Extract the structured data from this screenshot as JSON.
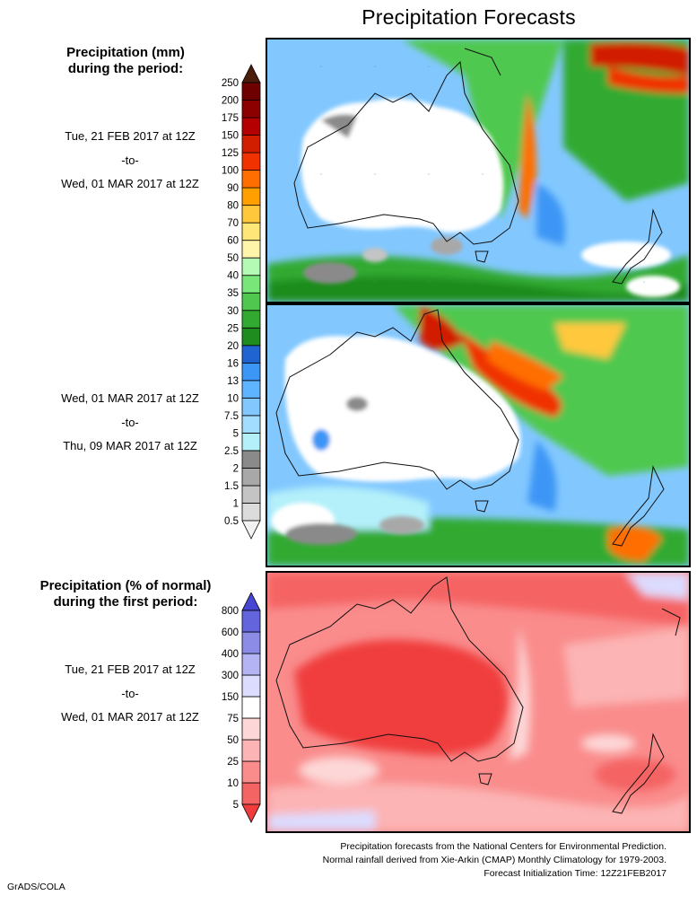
{
  "title": "Precipitation Forecasts",
  "section1": {
    "title_line1": "Precipitation (mm)",
    "title_line2": "during the period:",
    "periods": [
      {
        "start": "Tue, 21 FEB 2017 at 12Z",
        "sep": "-to-",
        "end": "Wed, 01 MAR 2017 at 12Z"
      },
      {
        "start": "Wed, 01 MAR 2017 at 12Z",
        "sep": "-to-",
        "end": "Thu, 09 MAR 2017 at 12Z"
      }
    ],
    "scale": {
      "labels": [
        "0.5",
        "1",
        "1.5",
        "2",
        "2.5",
        "5",
        "7.5",
        "10",
        "13",
        "16",
        "20",
        "25",
        "30",
        "35",
        "40",
        "50",
        "60",
        "70",
        "80",
        "90",
        "100",
        "125",
        "150",
        "175",
        "200",
        "250"
      ],
      "colors": [
        "#f2f2f2",
        "#dcdcdc",
        "#c4c4c4",
        "#a8a8a8",
        "#8a8a8a",
        "#b4f0fa",
        "#a2dcff",
        "#82c8ff",
        "#5fb4ff",
        "#3c96f5",
        "#2064d2",
        "#1e8c1e",
        "#32aa32",
        "#50c850",
        "#78e678",
        "#b4fab4",
        "#fff5aa",
        "#ffe678",
        "#ffc83c",
        "#ffa000",
        "#ff6e00",
        "#f03200",
        "#d21e00",
        "#b40000",
        "#8c0000",
        "#6e0000"
      ],
      "top_arrow_color": "#4a1e0a"
    }
  },
  "section2": {
    "title_line1": "Precipitation (% of normal)",
    "title_line2": "during the first period:",
    "period": {
      "start": "Tue, 21 FEB 2017 at 12Z",
      "sep": "-to-",
      "end": "Wed, 01 MAR 2017 at 12Z"
    },
    "scale": {
      "labels": [
        "5",
        "10",
        "25",
        "50",
        "75",
        "150",
        "300",
        "400",
        "600",
        "800"
      ],
      "colors": [
        "#f03c3c",
        "#f56464",
        "#fa8c8c",
        "#fcb4b4",
        "#fdd7d7",
        "#ffffff",
        "#dcdcff",
        "#b4b4f5",
        "#8c8ce6",
        "#6464dc",
        "#4646d2"
      ]
    }
  },
  "footer": {
    "line1": "Precipitation forecasts from the National Centers for Environmental Prediction.",
    "line2": "Normal rainfall derived from Xie-Arkin (CMAP) Monthly Climatology for 1979-2003.",
    "line3": "Forecast Initialization Time: 12Z21FEB2017"
  },
  "credit": "GrADS/COLA"
}
